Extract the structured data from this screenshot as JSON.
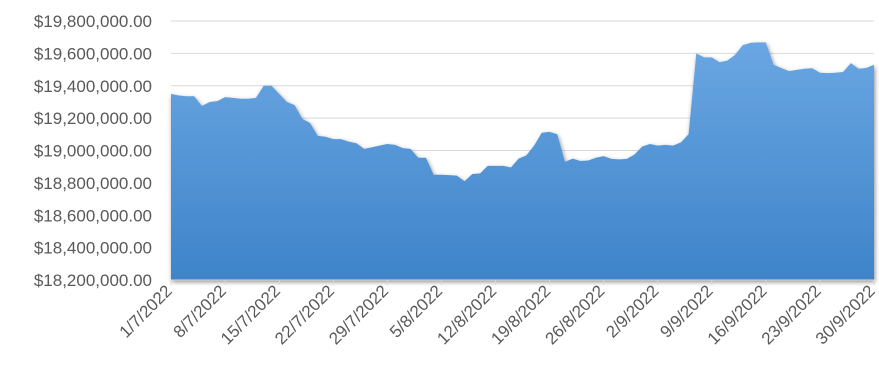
{
  "chart_data": {
    "type": "area",
    "title": "",
    "xlabel": "",
    "ylabel": "",
    "ylim": [
      18200000,
      19800000
    ],
    "grid": true,
    "legend": "none",
    "colors": {
      "area_top": "#6aa6e3",
      "area_bottom": "#3e84c9",
      "grid": "#d9d9d9",
      "text": "#595959"
    },
    "y_ticks": [
      "$18,200,000.00",
      "$18,400,000.00",
      "$18,600,000.00",
      "$18,800,000.00",
      "$19,000,000.00",
      "$19,200,000.00",
      "$19,400,000.00",
      "$19,600,000.00",
      "$19,800,000.00"
    ],
    "y_tick_values": [
      18200000,
      18400000,
      18600000,
      18800000,
      19000000,
      19200000,
      19400000,
      19600000,
      19800000
    ],
    "x_range": [
      "1/7/2022",
      "30/9/2022"
    ],
    "x_ticks": [
      "1/7/2022",
      "8/7/2022",
      "15/7/2022",
      "22/7/2022",
      "29/7/2022",
      "5/8/2022",
      "12/8/2022",
      "19/8/2022",
      "26/8/2022",
      "2/9/2022",
      "9/9/2022",
      "16/9/2022",
      "23/9/2022",
      "30/9/2022"
    ],
    "series": [
      {
        "points": [
          [
            "1/7/2022",
            19350000
          ],
          [
            "2/7/2022",
            19340000
          ],
          [
            "3/7/2022",
            19335000
          ],
          [
            "4/7/2022",
            19335000
          ],
          [
            "5/7/2022",
            19275000
          ],
          [
            "6/7/2022",
            19300000
          ],
          [
            "7/7/2022",
            19305000
          ],
          [
            "8/7/2022",
            19330000
          ],
          [
            "9/7/2022",
            19325000
          ],
          [
            "10/7/2022",
            19320000
          ],
          [
            "11/7/2022",
            19320000
          ],
          [
            "12/7/2022",
            19325000
          ],
          [
            "13/7/2022",
            19400000
          ],
          [
            "14/7/2022",
            19400000
          ],
          [
            "15/7/2022",
            19350000
          ],
          [
            "16/7/2022",
            19300000
          ],
          [
            "17/7/2022",
            19280000
          ],
          [
            "18/7/2022",
            19195000
          ],
          [
            "19/7/2022",
            19170000
          ],
          [
            "20/7/2022",
            19090000
          ],
          [
            "21/7/2022",
            19085000
          ],
          [
            "22/7/2022",
            19070000
          ],
          [
            "23/7/2022",
            19070000
          ],
          [
            "24/7/2022",
            19055000
          ],
          [
            "25/7/2022",
            19045000
          ],
          [
            "26/7/2022",
            19010000
          ],
          [
            "27/7/2022",
            19020000
          ],
          [
            "28/7/2022",
            19030000
          ],
          [
            "29/7/2022",
            19040000
          ],
          [
            "30/7/2022",
            19035000
          ],
          [
            "31/7/2022",
            19015000
          ],
          [
            "1/8/2022",
            19010000
          ],
          [
            "2/8/2022",
            18955000
          ],
          [
            "3/8/2022",
            18955000
          ],
          [
            "4/8/2022",
            18850000
          ],
          [
            "5/8/2022",
            18850000
          ],
          [
            "6/8/2022",
            18848000
          ],
          [
            "7/8/2022",
            18845000
          ],
          [
            "8/8/2022",
            18810000
          ],
          [
            "9/8/2022",
            18855000
          ],
          [
            "10/8/2022",
            18858000
          ],
          [
            "11/8/2022",
            18905000
          ],
          [
            "12/8/2022",
            18905000
          ],
          [
            "13/8/2022",
            18905000
          ],
          [
            "14/8/2022",
            18895000
          ],
          [
            "15/8/2022",
            18950000
          ],
          [
            "16/8/2022",
            18970000
          ],
          [
            "17/8/2022",
            19030000
          ],
          [
            "18/8/2022",
            19110000
          ],
          [
            "19/8/2022",
            19115000
          ],
          [
            "20/8/2022",
            19100000
          ],
          [
            "21/8/2022",
            18930000
          ],
          [
            "22/8/2022",
            18950000
          ],
          [
            "23/8/2022",
            18935000
          ],
          [
            "24/8/2022",
            18938000
          ],
          [
            "25/8/2022",
            18955000
          ],
          [
            "26/8/2022",
            18965000
          ],
          [
            "27/8/2022",
            18948000
          ],
          [
            "28/8/2022",
            18945000
          ],
          [
            "29/8/2022",
            18948000
          ],
          [
            "30/8/2022",
            18975000
          ],
          [
            "31/8/2022",
            19025000
          ],
          [
            "1/9/2022",
            19040000
          ],
          [
            "2/9/2022",
            19030000
          ],
          [
            "3/9/2022",
            19035000
          ],
          [
            "4/9/2022",
            19030000
          ],
          [
            "5/9/2022",
            19050000
          ],
          [
            "6/9/2022",
            19100000
          ],
          [
            "7/9/2022",
            19600000
          ],
          [
            "8/9/2022",
            19575000
          ],
          [
            "9/9/2022",
            19575000
          ],
          [
            "10/9/2022",
            19545000
          ],
          [
            "11/9/2022",
            19555000
          ],
          [
            "12/9/2022",
            19590000
          ],
          [
            "13/9/2022",
            19650000
          ],
          [
            "14/9/2022",
            19665000
          ],
          [
            "15/9/2022",
            19668000
          ],
          [
            "16/9/2022",
            19668000
          ],
          [
            "17/9/2022",
            19530000
          ],
          [
            "18/9/2022",
            19510000
          ],
          [
            "19/9/2022",
            19490000
          ],
          [
            "20/9/2022",
            19498000
          ],
          [
            "21/9/2022",
            19505000
          ],
          [
            "22/9/2022",
            19508000
          ],
          [
            "23/9/2022",
            19480000
          ],
          [
            "24/9/2022",
            19478000
          ],
          [
            "25/9/2022",
            19480000
          ],
          [
            "26/9/2022",
            19485000
          ],
          [
            "27/9/2022",
            19540000
          ],
          [
            "28/9/2022",
            19505000
          ],
          [
            "29/9/2022",
            19510000
          ],
          [
            "30/9/2022",
            19530000
          ]
        ]
      }
    ]
  }
}
